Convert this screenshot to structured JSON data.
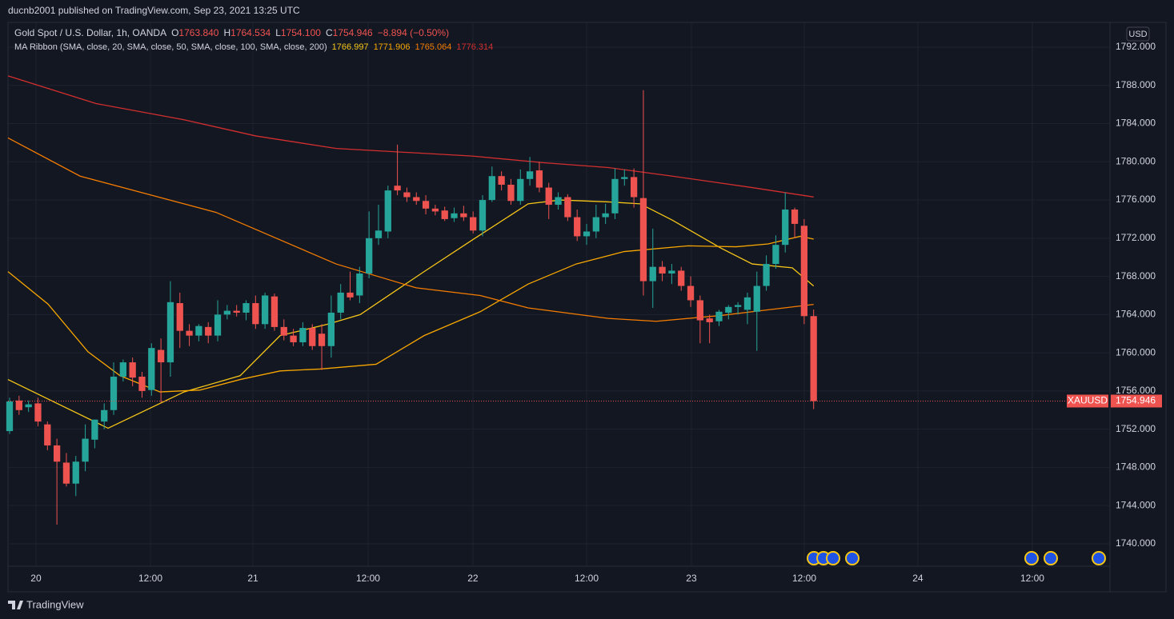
{
  "chart_data": {
    "type": "candlestick",
    "header": "ducnb2001 published on TradingView.com, Sep 23, 2021 13:25 UTC",
    "symbol_label": "Gold Spot / U.S. Dollar, 1h, OANDA",
    "ohlc_labels": [
      {
        "key": "O",
        "text": "1763.840"
      },
      {
        "key": "H",
        "text": "1764.534"
      },
      {
        "key": "L",
        "text": "1754.100"
      },
      {
        "key": "C",
        "text": "1754.946"
      }
    ],
    "change_label": "−8.894 (−0.50%)",
    "indicator_label": "MA Ribbon (SMA, close, 20, SMA, close, 50, SMA, close, 100, SMA, close, 200)",
    "currency": "USD",
    "price_tag": "XAUUSD",
    "price_tag_value": {
      "value": 1754.946,
      "label": "1754.946"
    },
    "brand": "TradingView",
    "up_color": "#26a69a",
    "down_color": "#ef5350",
    "xlim": [
      -0.17,
      116.33
    ],
    "xticks": [
      {
        "value": 2.79,
        "label": "20"
      },
      {
        "value": 14.89,
        "label": "12:00"
      },
      {
        "value": 25.72,
        "label": "21"
      },
      {
        "value": 37.9,
        "label": "12:00"
      },
      {
        "value": 48.98,
        "label": "22"
      },
      {
        "value": 61.0,
        "label": "12:00"
      },
      {
        "value": 72.08,
        "label": "23"
      },
      {
        "value": 84.01,
        "label": "12:00"
      },
      {
        "value": 96.02,
        "label": "24"
      },
      {
        "value": 108.12,
        "label": "12:00"
      }
    ],
    "ylim": [
      1737.65,
      1794.43
    ],
    "yticks": [
      {
        "value": 1740,
        "label": "1740.000"
      },
      {
        "value": 1744,
        "label": "1744.000"
      },
      {
        "value": 1748,
        "label": "1748.000"
      },
      {
        "value": 1752,
        "label": "1752.000"
      },
      {
        "value": 1756,
        "label": "1756.000"
      },
      {
        "value": 1760,
        "label": "1760.000"
      },
      {
        "value": 1764,
        "label": "1764.000"
      },
      {
        "value": 1768,
        "label": "1768.000"
      },
      {
        "value": 1772,
        "label": "1772.000"
      },
      {
        "value": 1776,
        "label": "1776.000"
      },
      {
        "value": 1780,
        "label": "1780.000"
      },
      {
        "value": 1784,
        "label": "1784.000"
      },
      {
        "value": 1788,
        "label": "1788.000"
      },
      {
        "value": 1792,
        "label": "1792.000"
      }
    ],
    "grid": true,
    "open": [
      1751.8,
      1755.0,
      1754.3,
      1754.7,
      1752.5,
      1750.3,
      1748.5,
      1746.3,
      1748.6,
      1750.9,
      1752.8,
      1754.0,
      1757.5,
      1759.0,
      1757.5,
      1756.1,
      1760.3,
      1759.0,
      1765.2,
      1762.3,
      1761.8,
      1762.7,
      1761.8,
      1764.0,
      1764.4,
      1764.2,
      1765.2,
      1763.0,
      1765.9,
      1762.7,
      1761.8,
      1761.1,
      1762.6,
      1762.0,
      1760.7,
      1764.2,
      1766.3,
      1766.0,
      1768.3,
      1772.0,
      1772.7,
      1777.5,
      1776.8,
      1776.3,
      1775.9,
      1775.1,
      1774.9,
      1774.1,
      1774.6,
      1774.2,
      1772.8,
      1776.0,
      1778.5,
      1777.6,
      1775.9,
      1778.2,
      1779.1,
      1777.3,
      1775.5,
      1776.3,
      1774.2,
      1772.2,
      1772.7,
      1774.2,
      1774.6,
      1778.2,
      1778.4,
      1776.2,
      1767.5,
      1769.0,
      1768.3,
      1768.6,
      1767.0,
      1765.5,
      1763.6,
      1763.3,
      1764.2,
      1764.8,
      1764.5,
      1764.3,
      1767.0,
      1769.3,
      1771.3,
      1775.0,
      1773.3,
      1763.84
    ],
    "high": [
      1755.3,
      1755.5,
      1755.0,
      1755.3,
      1752.8,
      1751.0,
      1749.5,
      1749.2,
      1752.5,
      1753.0,
      1754.7,
      1759.0,
      1759.3,
      1759.5,
      1758.0,
      1761.0,
      1761.5,
      1767.5,
      1766.3,
      1763.0,
      1763.0,
      1763.2,
      1765.5,
      1765.0,
      1765.0,
      1765.5,
      1766.0,
      1766.3,
      1766.2,
      1763.5,
      1762.5,
      1763.2,
      1763.0,
      1763.0,
      1766.0,
      1767.2,
      1768.5,
      1769.0,
      1774.8,
      1775.5,
      1777.5,
      1781.8,
      1777.3,
      1776.8,
      1776.5,
      1775.5,
      1775.3,
      1775.2,
      1775.4,
      1774.8,
      1776.5,
      1779.5,
      1779.0,
      1778.2,
      1779.2,
      1780.5,
      1780.0,
      1777.8,
      1776.8,
      1776.6,
      1775.0,
      1773.5,
      1775.5,
      1775.6,
      1779.3,
      1779.2,
      1779.3,
      1787.5,
      1773.0,
      1769.6,
      1769.3,
      1769.0,
      1768.0,
      1766.0,
      1764.0,
      1764.5,
      1765.0,
      1765.3,
      1766.3,
      1768.5,
      1770.2,
      1772.3,
      1776.8,
      1775.2,
      1774.0,
      1764.534
    ],
    "low": [
      1751.5,
      1753.5,
      1753.8,
      1752.3,
      1749.8,
      1742.0,
      1746.0,
      1745.0,
      1747.6,
      1750.0,
      1752.0,
      1753.5,
      1757.0,
      1756.5,
      1755.3,
      1755.5,
      1754.8,
      1757.5,
      1760.5,
      1760.7,
      1761.2,
      1761.0,
      1761.2,
      1763.5,
      1763.8,
      1763.4,
      1762.5,
      1762.5,
      1762.3,
      1761.3,
      1760.7,
      1760.7,
      1760.3,
      1758.2,
      1759.5,
      1763.5,
      1765.5,
      1765.2,
      1767.8,
      1771.3,
      1772.0,
      1776.5,
      1775.8,
      1775.5,
      1774.5,
      1774.4,
      1773.8,
      1773.7,
      1773.8,
      1772.5,
      1772.2,
      1775.8,
      1777.0,
      1775.5,
      1775.5,
      1777.5,
      1776.8,
      1774.0,
      1775.0,
      1773.8,
      1771.7,
      1771.3,
      1772.0,
      1773.5,
      1774.0,
      1777.5,
      1775.2,
      1766.0,
      1764.7,
      1767.5,
      1767.2,
      1766.5,
      1764.8,
      1761.0,
      1761.0,
      1762.8,
      1763.5,
      1764.0,
      1763.0,
      1760.2,
      1766.5,
      1768.8,
      1770.5,
      1772.0,
      1763.0,
      1754.1
    ],
    "close": [
      1754.9,
      1754.0,
      1754.6,
      1752.8,
      1750.3,
      1748.6,
      1746.3,
      1748.6,
      1751.0,
      1753.0,
      1754.0,
      1757.5,
      1759.0,
      1757.4,
      1756.0,
      1760.5,
      1759.0,
      1765.3,
      1762.3,
      1761.8,
      1762.8,
      1761.8,
      1764.0,
      1764.4,
      1764.2,
      1765.2,
      1763.0,
      1766.0,
      1762.7,
      1761.8,
      1761.1,
      1762.6,
      1760.7,
      1760.7,
      1764.2,
      1766.3,
      1765.8,
      1768.3,
      1772.0,
      1772.8,
      1777.0,
      1777.0,
      1776.3,
      1775.9,
      1775.1,
      1774.8,
      1774.0,
      1774.6,
      1774.2,
      1772.8,
      1776.0,
      1778.5,
      1777.6,
      1775.9,
      1778.2,
      1779.0,
      1777.3,
      1775.5,
      1776.3,
      1774.2,
      1772.2,
      1772.7,
      1774.2,
      1774.6,
      1778.2,
      1778.4,
      1776.3,
      1767.5,
      1769.0,
      1768.3,
      1768.6,
      1767.0,
      1765.5,
      1763.4,
      1763.2,
      1764.3,
      1764.8,
      1765.0,
      1765.8,
      1767.0,
      1769.3,
      1771.3,
      1775.0,
      1773.5,
      1763.84,
      1754.946
    ],
    "series": [
      {
        "name": "SMA 20",
        "color": "#f5c518",
        "last_label": "1766.997",
        "x": [
          -0.17,
          10.41,
          18.44,
          24.37,
          28.6,
          33.67,
          37.06,
          43.82,
          48.9,
          54.82,
          58.21,
          63.28,
          66.67,
          70.05,
          75.13,
          78.51,
          82.74,
          85
        ],
        "values": [
          1757.2,
          1752.1,
          1755.9,
          1757.6,
          1761.8,
          1763.0,
          1764.0,
          1768.5,
          1771.8,
          1775.6,
          1776.0,
          1775.8,
          1775.6,
          1773.9,
          1771.0,
          1769.3,
          1768.9,
          1766.997
        ]
      },
      {
        "name": "SMA 50",
        "color": "#f7a600",
        "last_label": "1771.906",
        "x": [
          -0.17,
          4.06,
          8.29,
          11.68,
          15.9,
          20.14,
          24.37,
          28.6,
          32.83,
          38.75,
          43.82,
          49.75,
          54.82,
          59.9,
          64.97,
          71.74,
          76.82,
          80.2,
          83.59,
          85
        ],
        "values": [
          1768.5,
          1765.1,
          1760.1,
          1757.6,
          1755.9,
          1756.1,
          1757.2,
          1758.1,
          1758.3,
          1758.8,
          1761.8,
          1764.3,
          1767.2,
          1769.3,
          1770.6,
          1771.2,
          1771.1,
          1771.4,
          1772.2,
          1771.906
        ]
      },
      {
        "name": "SMA 100",
        "color": "#f57c00",
        "last_label": "1765.064",
        "x": [
          -0.17,
          7.45,
          21.83,
          34.52,
          42.98,
          49.75,
          54.82,
          63.28,
          68.36,
          75.13,
          80.2,
          85
        ],
        "values": [
          1782.5,
          1778.5,
          1774.7,
          1769.3,
          1766.8,
          1766.0,
          1764.7,
          1763.6,
          1763.3,
          1763.9,
          1764.5,
          1765.064
        ]
      },
      {
        "name": "SMA 200",
        "color": "#d32f2f",
        "last_label": "1776.314",
        "x": [
          -0.17,
          9.14,
          18.44,
          26.06,
          34.52,
          48.9,
          56.51,
          63.28,
          70.05,
          78.51,
          85
        ],
        "values": [
          1789.0,
          1786.1,
          1784.4,
          1782.7,
          1781.4,
          1780.6,
          1779.9,
          1779.4,
          1778.5,
          1777.3,
          1776.314
        ]
      }
    ]
  }
}
